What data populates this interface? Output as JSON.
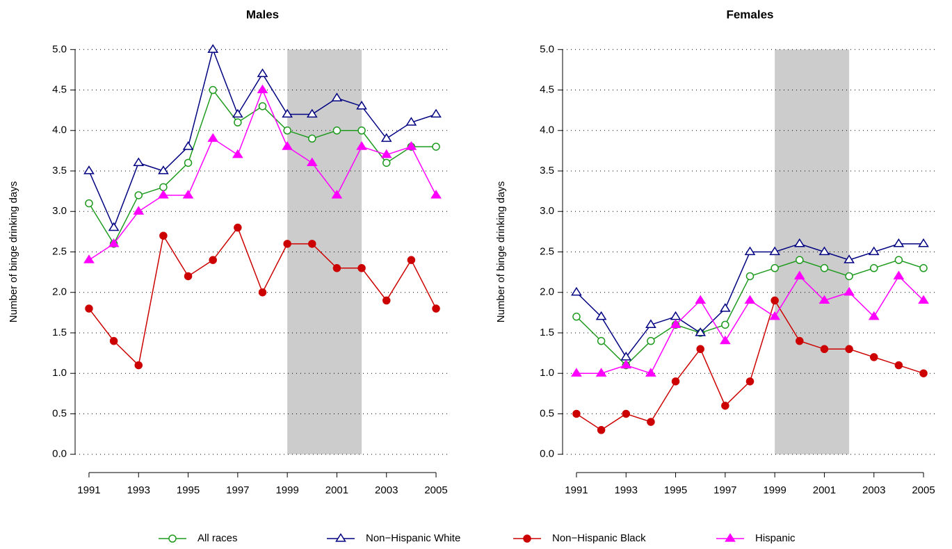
{
  "chart_data": [
    {
      "type": "line",
      "title": "Males",
      "y_label": "Number of binge drinking days",
      "x": [
        1991,
        1992,
        1993,
        1994,
        1995,
        1996,
        1997,
        1998,
        1999,
        2000,
        2001,
        2002,
        2003,
        2004,
        2005
      ],
      "xlim": [
        1990.44,
        2005.56
      ],
      "xticks": [
        1991,
        1993,
        1995,
        1997,
        1999,
        2001,
        2003,
        2005
      ],
      "ylim": [
        -0.2,
        5.2
      ],
      "yticks": [
        {
          "value": 0,
          "label": "0.0"
        },
        0.5,
        {
          "value": 1,
          "label": "1.0"
        },
        1.5,
        {
          "value": 2,
          "label": "2.0"
        },
        2.5,
        {
          "value": 3,
          "label": "3.0"
        },
        3.5,
        {
          "value": 4,
          "label": "4.0"
        },
        4.5,
        {
          "value": 5,
          "label": "5.0"
        }
      ],
      "grid": true,
      "shade": [
        1999,
        2002
      ],
      "shade_color": "#cccccc",
      "series": [
        {
          "name": "All races",
          "color": "#1e9a1e",
          "marker": "open-circle",
          "values": [
            3.1,
            2.6,
            3.2,
            3.3,
            3.6,
            4.5,
            4.1,
            4.3,
            4.0,
            3.9,
            4.0,
            4.0,
            3.6,
            3.8,
            3.8
          ]
        },
        {
          "name": "Non−Hispanic White",
          "color": "#000080",
          "marker": "open-triangle",
          "values": [
            3.5,
            2.8,
            3.6,
            3.5,
            3.8,
            5.0,
            4.2,
            4.7,
            4.2,
            4.2,
            4.4,
            4.3,
            3.9,
            4.1,
            4.2
          ]
        },
        {
          "name": "Non−Hispanic Black",
          "color": "#cc0000",
          "marker": "filled-circle",
          "values": [
            1.8,
            1.4,
            1.1,
            2.7,
            2.2,
            2.4,
            2.8,
            2.0,
            2.6,
            2.6,
            2.3,
            2.3,
            1.9,
            2.4,
            1.8
          ]
        },
        {
          "name": "Hispanic",
          "color": "#ff00ff",
          "marker": "filled-triangle",
          "values": [
            2.4,
            2.6,
            3.0,
            3.2,
            3.2,
            3.9,
            3.7,
            4.5,
            3.8,
            3.6,
            3.2,
            3.8,
            3.7,
            3.8,
            3.2
          ]
        }
      ]
    },
    {
      "type": "line",
      "title": "Females",
      "y_label": "Number of binge drinking days",
      "x": [
        1991,
        1992,
        1993,
        1994,
        1995,
        1996,
        1997,
        1998,
        1999,
        2000,
        2001,
        2002,
        2003,
        2004,
        2005
      ],
      "xlim": [
        1990.44,
        2005.56
      ],
      "xticks": [
        1991,
        1993,
        1995,
        1997,
        1999,
        2001,
        2003,
        2005
      ],
      "ylim": [
        -0.2,
        5.2
      ],
      "yticks": [
        {
          "value": 0,
          "label": "0.0"
        },
        0.5,
        {
          "value": 1,
          "label": "1.0"
        },
        1.5,
        {
          "value": 2,
          "label": "2.0"
        },
        2.5,
        {
          "value": 3,
          "label": "3.0"
        },
        3.5,
        {
          "value": 4,
          "label": "4.0"
        },
        4.5,
        {
          "value": 5,
          "label": "5.0"
        }
      ],
      "grid": true,
      "shade": [
        1999,
        2002
      ],
      "shade_color": "#cccccc",
      "series": [
        {
          "name": "All races",
          "color": "#1e9a1e",
          "marker": "open-circle",
          "values": [
            1.7,
            1.4,
            1.1,
            1.4,
            1.6,
            1.5,
            1.6,
            2.2,
            2.3,
            2.4,
            2.3,
            2.2,
            2.3,
            2.4,
            2.3
          ]
        },
        {
          "name": "Non−Hispanic White",
          "color": "#000080",
          "marker": "open-triangle",
          "values": [
            2.0,
            1.7,
            1.2,
            1.6,
            1.7,
            1.5,
            1.8,
            2.5,
            2.5,
            2.6,
            2.5,
            2.4,
            2.5,
            2.6,
            2.6
          ]
        },
        {
          "name": "Non−Hispanic Black",
          "color": "#cc0000",
          "marker": "filled-circle",
          "values": [
            0.5,
            0.3,
            0.5,
            0.4,
            0.9,
            1.3,
            0.6,
            0.9,
            1.9,
            1.4,
            1.3,
            1.3,
            1.2,
            1.1,
            1.0
          ]
        },
        {
          "name": "Hispanic",
          "color": "#ff00ff",
          "marker": "filled-triangle",
          "values": [
            1.0,
            1.0,
            1.1,
            1.0,
            1.6,
            1.9,
            1.4,
            1.9,
            1.7,
            2.2,
            1.9,
            2.0,
            1.7,
            2.2,
            1.9
          ]
        }
      ]
    }
  ]
}
